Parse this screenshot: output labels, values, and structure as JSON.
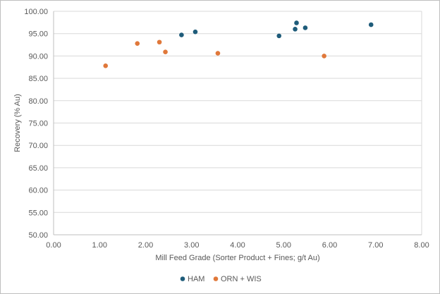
{
  "chart_data": {
    "type": "scatter",
    "title": "",
    "xlabel": "Mill Feed Grade (Sorter Product + Fines; g/t Au)",
    "ylabel": "Recovery  (% Au)",
    "xlim": [
      0,
      8
    ],
    "ylim": [
      50,
      100
    ],
    "x_ticks": [
      "0.00",
      "1.00",
      "2.00",
      "3.00",
      "4.00",
      "5.00",
      "6.00",
      "7.00",
      "8.00"
    ],
    "y_ticks": [
      "50.00",
      "55.00",
      "60.00",
      "65.00",
      "70.00",
      "75.00",
      "80.00",
      "85.00",
      "90.00",
      "95.00",
      "100.00"
    ],
    "grid": "horizontal",
    "legend_position": "bottom",
    "series": [
      {
        "name": "HAM",
        "color": "#1f5c7a",
        "points": [
          {
            "x": 2.78,
            "y": 94.7
          },
          {
            "x": 3.08,
            "y": 95.4
          },
          {
            "x": 4.9,
            "y": 94.5
          },
          {
            "x": 5.25,
            "y": 96.0
          },
          {
            "x": 5.28,
            "y": 97.4
          },
          {
            "x": 5.47,
            "y": 96.3
          },
          {
            "x": 6.9,
            "y": 97.0
          }
        ]
      },
      {
        "name": "ORN + WIS",
        "color": "#e0783a",
        "points": [
          {
            "x": 1.13,
            "y": 87.8
          },
          {
            "x": 1.82,
            "y": 92.8
          },
          {
            "x": 2.3,
            "y": 93.1
          },
          {
            "x": 2.43,
            "y": 90.9
          },
          {
            "x": 3.57,
            "y": 90.6
          },
          {
            "x": 5.88,
            "y": 90.0
          }
        ]
      }
    ]
  }
}
